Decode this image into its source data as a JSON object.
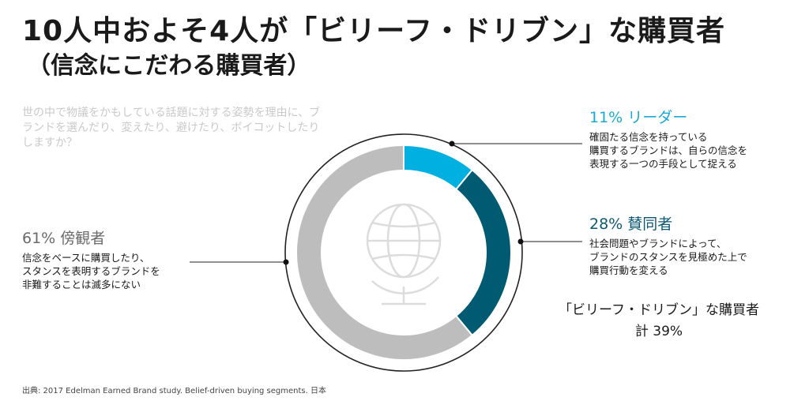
{
  "title": "10人中およそ4人が「ビリーフ・ドリブン」な購買者",
  "subtitle": "（信念にこだわる購買者）",
  "question": "世の中で物議をかもしている話題に対する姿勢を理由に、ブランドを選んだり、変えたり、避けたり、ボイコットしたりしますか？",
  "segments": {
    "leader": {
      "title": "11% リーダー",
      "description": "確固たる信念を持っている\n購買するブランドは、自らの信念を\n表現する一つの手段として捉える",
      "color": "#00b0e0"
    },
    "supporter": {
      "title": "28% 賛同者",
      "description": "社会問題やブランドによって、\nブランドのスタンスを見極めた上で\n購買行動を変える",
      "color": "#005a72"
    },
    "bystander": {
      "title": "61% 傍観者",
      "description": "信念をベースに購買したり、\nスタンスを表明するブランドを\n非難することは滅多にない",
      "color": "#bdbdbd"
    }
  },
  "total": {
    "line1": "「ビリーフ・ドリブン」な購買者",
    "line2": "計 39%"
  },
  "source": "出典: 2017 Edelman Earned Brand study. Belief-driven buying segments. 日本",
  "center_icon": "globe-icon",
  "chart_data": {
    "type": "pie",
    "donut": true,
    "categories": [
      "リーダー",
      "賛同者",
      "傍観者"
    ],
    "values": [
      11,
      28,
      61
    ],
    "colors": [
      "#00b0e0",
      "#005a72",
      "#bdbdbd"
    ]
  }
}
